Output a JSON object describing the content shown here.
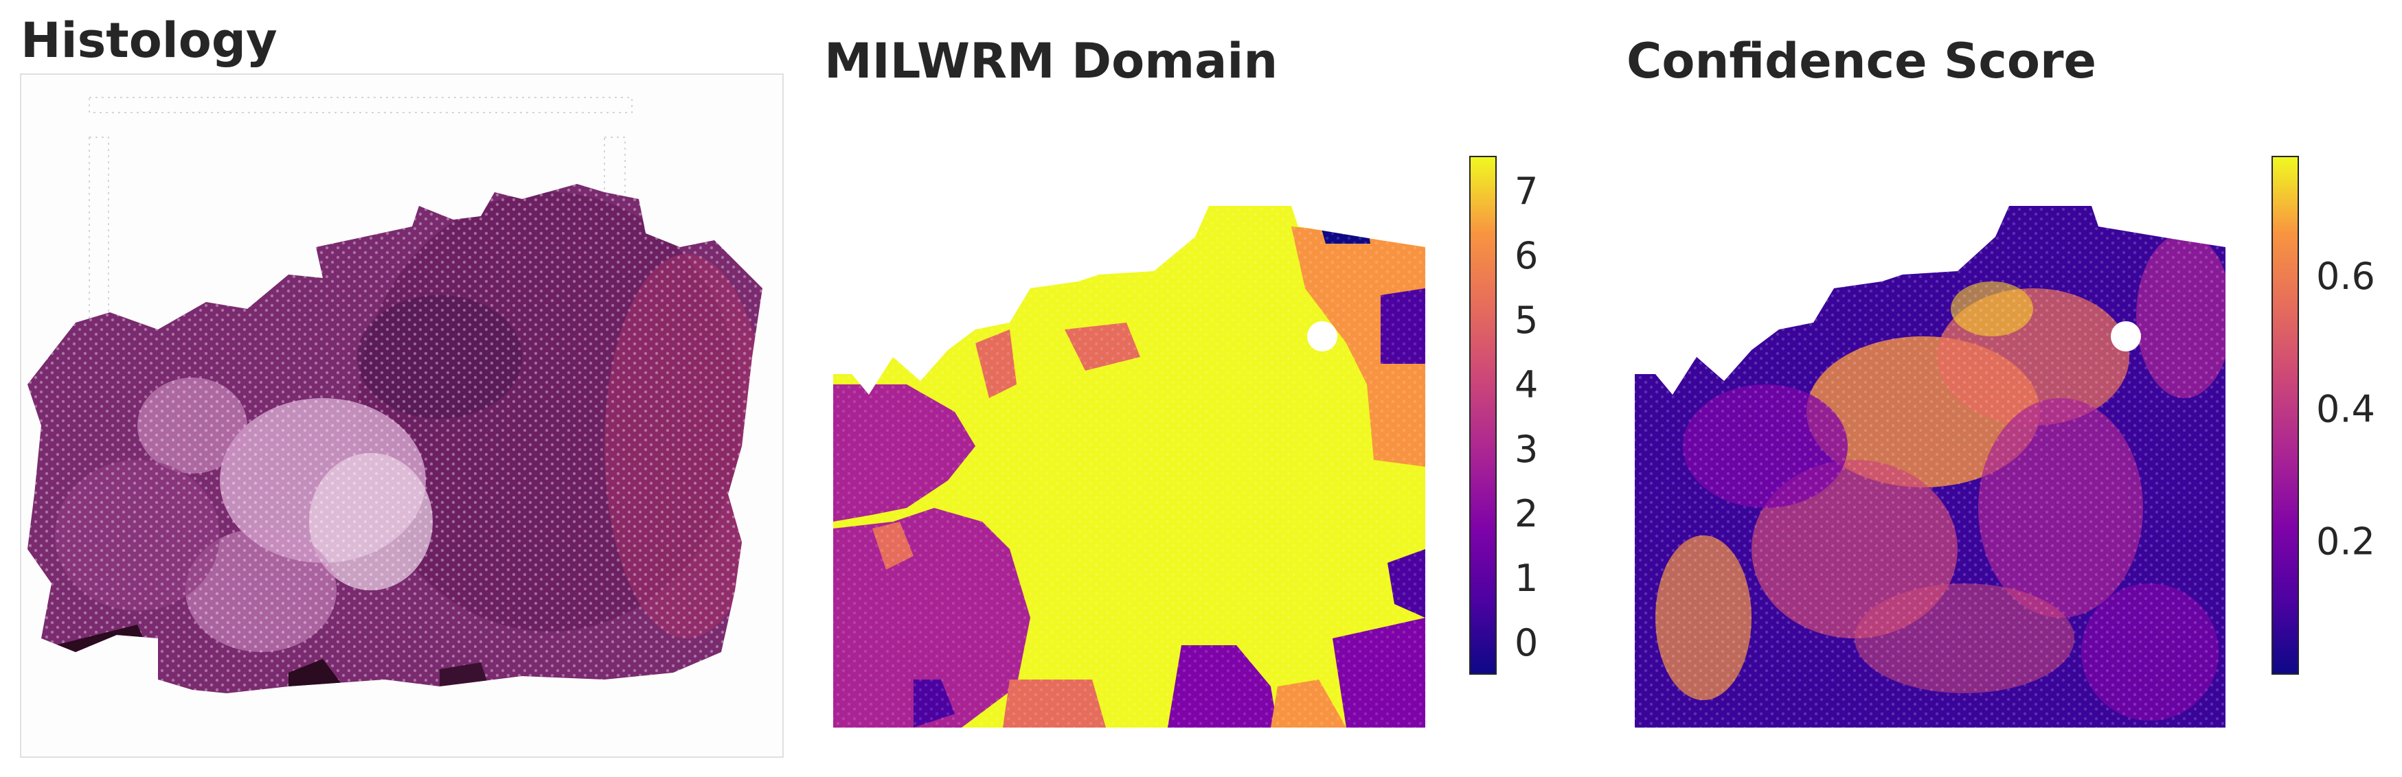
{
  "panels": {
    "histology_title": "Histology",
    "domain_title": "MILWRM Domain",
    "confidence_title": "Confidence Score"
  },
  "colors": {
    "tissue": "#7a2a6e",
    "tissue_dark": "#4e1650",
    "tissue_light": "#c98abf",
    "background": "#fdfdfd",
    "spot_grid": "#c9d3dd"
  },
  "chart_data": [
    {
      "type": "heatmap",
      "title": "MILWRM Domain",
      "colormap": "plasma",
      "value_kind": "categorical",
      "categories": [
        0,
        1,
        2,
        3,
        4,
        5,
        6,
        7
      ],
      "colorbar": {
        "ticks": [
          "0",
          "1",
          "2",
          "3",
          "4",
          "5",
          "6",
          "7"
        ],
        "range": [
          -0.5,
          7.5
        ],
        "colors": [
          "#0d0887",
          "#4c02a1",
          "#7e03a8",
          "#a92395",
          "#cc4778",
          "#e66c5c",
          "#f89441",
          "#f0f921"
        ]
      },
      "legend_position": "right",
      "grid": false
    },
    {
      "type": "heatmap",
      "title": "Confidence Score",
      "colormap": "plasma",
      "value_kind": "continuous",
      "colorbar": {
        "ticks": [
          "0.2",
          "0.4",
          "0.6"
        ],
        "tick_values": [
          0.2,
          0.4,
          0.6
        ],
        "range": [
          0.0,
          0.78
        ]
      },
      "legend_position": "right",
      "grid": false
    }
  ]
}
